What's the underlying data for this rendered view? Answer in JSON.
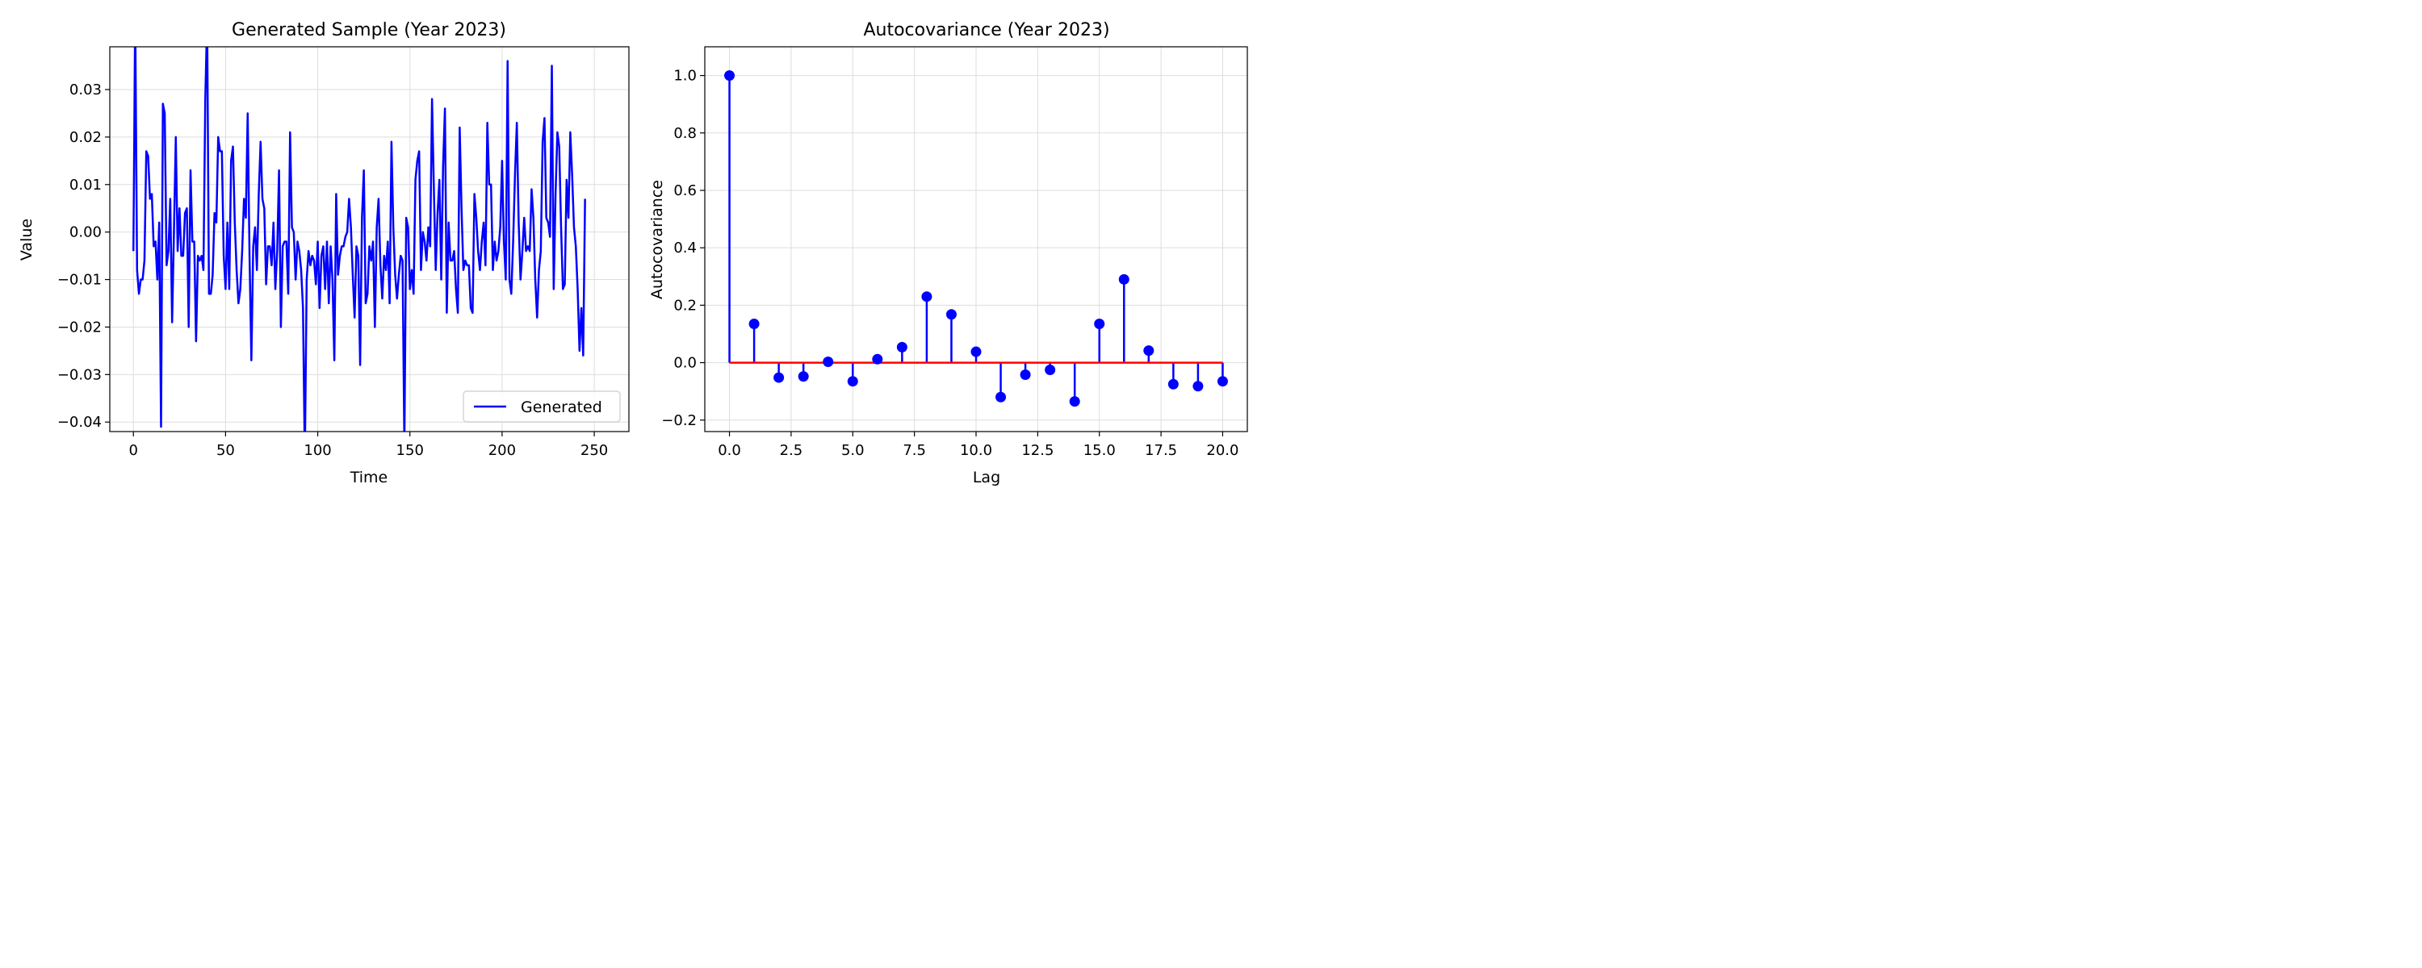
{
  "chart_data": [
    {
      "type": "line",
      "title": "Generated Sample (Year 2023)",
      "xlabel": "Time",
      "ylabel": "Value",
      "xlim": [
        -12.8,
        268.8
      ],
      "ylim": [
        -0.042,
        0.039
      ],
      "xticks": [
        0,
        50,
        100,
        150,
        200,
        250
      ],
      "xtick_labels": [
        "0",
        "50",
        "100",
        "150",
        "200",
        "250"
      ],
      "yticks": [
        -0.04,
        -0.03,
        -0.02,
        -0.01,
        0.0,
        0.01,
        0.02,
        0.03
      ],
      "ytick_labels": [
        "−0.04",
        "−0.03",
        "−0.02",
        "−0.01",
        "0.00",
        "0.01",
        "0.02",
        "0.03"
      ],
      "grid": true,
      "legend_position": "lower-right",
      "series": [
        {
          "name": "Generated",
          "color": "#0000ff",
          "x_start": 0,
          "x_step": 1,
          "values": [
            -0.004,
            0.045,
            -0.008,
            -0.013,
            -0.01,
            -0.01,
            -0.006,
            0.017,
            0.016,
            0.007,
            0.008,
            -0.003,
            -0.002,
            -0.01,
            0.002,
            -0.041,
            0.027,
            0.025,
            -0.007,
            -0.004,
            0.007,
            -0.019,
            0.0,
            0.02,
            -0.004,
            0.005,
            -0.005,
            -0.005,
            0.004,
            0.005,
            -0.02,
            0.013,
            -0.002,
            -0.002,
            -0.023,
            -0.005,
            -0.006,
            -0.005,
            -0.008,
            0.028,
            0.045,
            -0.013,
            -0.013,
            -0.009,
            0.004,
            0.002,
            0.02,
            0.017,
            0.017,
            -0.005,
            -0.012,
            0.002,
            -0.012,
            0.015,
            0.018,
            0.002,
            -0.008,
            -0.015,
            -0.012,
            -0.004,
            0.007,
            0.003,
            0.025,
            -0.005,
            -0.027,
            -0.003,
            0.001,
            -0.008,
            0.008,
            0.019,
            0.007,
            0.005,
            -0.011,
            -0.003,
            -0.003,
            -0.007,
            0.002,
            -0.012,
            -0.004,
            0.013,
            -0.02,
            -0.003,
            -0.002,
            -0.002,
            -0.013,
            0.021,
            0.001,
            0.0,
            -0.01,
            -0.002,
            -0.004,
            -0.008,
            -0.016,
            -0.048,
            -0.01,
            -0.004,
            -0.007,
            -0.005,
            -0.006,
            -0.011,
            -0.002,
            -0.016,
            -0.005,
            -0.003,
            -0.012,
            -0.002,
            -0.015,
            -0.003,
            -0.01,
            -0.027,
            0.008,
            -0.009,
            -0.005,
            -0.003,
            -0.003,
            -0.001,
            0.0,
            0.007,
            0.001,
            -0.009,
            -0.018,
            -0.003,
            -0.005,
            -0.028,
            0.003,
            0.013,
            -0.015,
            -0.013,
            -0.003,
            -0.006,
            -0.002,
            -0.02,
            0.001,
            0.007,
            -0.007,
            -0.014,
            -0.005,
            -0.008,
            -0.002,
            -0.015,
            0.019,
            0.001,
            -0.009,
            -0.014,
            -0.009,
            -0.005,
            -0.006,
            -0.045,
            0.003,
            0.001,
            -0.012,
            -0.008,
            -0.013,
            0.011,
            0.015,
            0.017,
            -0.008,
            0.0,
            -0.002,
            -0.006,
            0.001,
            -0.003,
            0.028,
            0.009,
            -0.008,
            0.004,
            0.011,
            -0.01,
            0.014,
            0.026,
            -0.017,
            0.002,
            -0.006,
            -0.006,
            -0.004,
            -0.012,
            -0.017,
            0.022,
            0.005,
            -0.008,
            -0.006,
            -0.007,
            -0.007,
            -0.016,
            -0.017,
            0.008,
            0.003,
            -0.004,
            -0.008,
            -0.002,
            0.002,
            -0.007,
            0.023,
            0.01,
            0.01,
            -0.008,
            -0.002,
            -0.006,
            -0.004,
            0.001,
            0.015,
            -0.002,
            -0.01,
            0.036,
            -0.01,
            -0.013,
            -0.002,
            0.012,
            0.023,
            0.002,
            -0.01,
            -0.004,
            0.003,
            -0.004,
            -0.003,
            -0.004,
            0.009,
            0.003,
            -0.01,
            -0.018,
            -0.008,
            -0.004,
            0.019,
            0.024,
            0.003,
            0.002,
            -0.001,
            0.035,
            -0.012,
            0.008,
            0.021,
            0.018,
            0.001,
            -0.012,
            -0.011,
            0.011,
            0.003,
            0.021,
            0.012,
            0.001,
            -0.003,
            -0.012,
            -0.025,
            -0.016,
            -0.026,
            0.007
          ]
        }
      ]
    },
    {
      "type": "stem",
      "title": "Autocovariance (Year 2023)",
      "xlabel": "Lag",
      "ylabel": "Autocovariance",
      "xlim": [
        -1.0,
        21.0
      ],
      "ylim": [
        -0.24,
        1.1
      ],
      "xticks": [
        0,
        2.5,
        5,
        7.5,
        10,
        12.5,
        15,
        17.5,
        20
      ],
      "xtick_labels": [
        "0.0",
        "2.5",
        "5.0",
        "7.5",
        "10.0",
        "12.5",
        "15.0",
        "17.5",
        "20.0"
      ],
      "yticks": [
        -0.2,
        0.0,
        0.2,
        0.4,
        0.6,
        0.8,
        1.0
      ],
      "ytick_labels": [
        "−0.2",
        "0.0",
        "0.2",
        "0.4",
        "0.6",
        "0.8",
        "1.0"
      ],
      "grid": true,
      "baseline": 0.0,
      "baseline_color": "#ff0000",
      "stem_color": "#0000ff",
      "x": [
        0,
        1,
        2,
        3,
        4,
        5,
        6,
        7,
        8,
        9,
        10,
        11,
        12,
        13,
        14,
        15,
        16,
        17,
        18,
        19,
        20
      ],
      "values": [
        1.0,
        0.135,
        -0.052,
        -0.048,
        0.003,
        -0.065,
        0.012,
        0.054,
        0.23,
        0.168,
        0.038,
        -0.12,
        -0.042,
        -0.025,
        -0.135,
        0.135,
        0.29,
        0.042,
        -0.075,
        -0.082,
        -0.065
      ]
    }
  ]
}
